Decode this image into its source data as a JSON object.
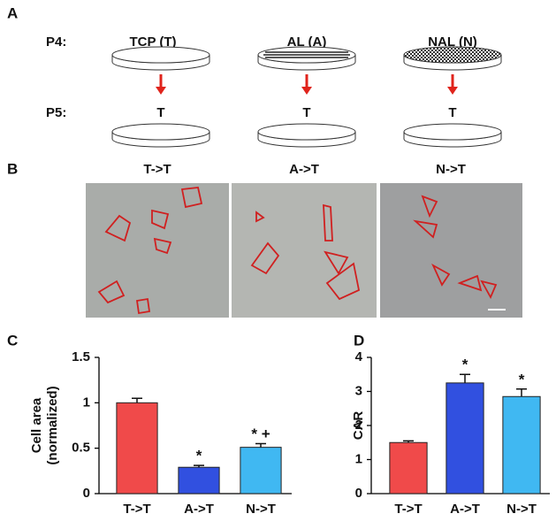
{
  "panel_a": {
    "label": "A",
    "rows": [
      {
        "label": "P4:",
        "dishes": [
          "TCP (T)",
          "AL (A)",
          "NAL (N)"
        ]
      },
      {
        "label": "P5:",
        "dishes": [
          "T",
          "T",
          "T"
        ]
      }
    ]
  },
  "panel_b": {
    "label": "B",
    "images": [
      "T->T",
      "A->T",
      "N->T"
    ]
  },
  "chart_data": [
    {
      "type": "bar",
      "label": "C",
      "ylabel": [
        "Cell area",
        "(normalized)"
      ],
      "categories": [
        "T->T",
        "A->T",
        "N->T"
      ],
      "values": [
        1,
        0.29,
        0.51
      ],
      "errors": [
        0.05,
        0.02,
        0.04
      ],
      "colors": [
        "#f04a4a",
        "#3150e0",
        "#40b8f2"
      ],
      "bar_labels": [
        null,
        "*",
        "* +"
      ],
      "ylim": [
        0,
        1.5
      ],
      "yticks": [
        0,
        0.5,
        1,
        1.5
      ]
    },
    {
      "type": "bar",
      "label": "D",
      "ylabel": [
        "CAR"
      ],
      "categories": [
        "T->T",
        "A->T",
        "N->T"
      ],
      "values": [
        1.5,
        3.25,
        2.85
      ],
      "errors": [
        0.05,
        0.25,
        0.22
      ],
      "colors": [
        "#f04a4a",
        "#3150e0",
        "#40b8f2"
      ],
      "bar_labels": [
        null,
        "*",
        "*"
      ],
      "ylim": [
        0,
        4
      ],
      "yticks": [
        0,
        1,
        2,
        3,
        4
      ]
    }
  ]
}
